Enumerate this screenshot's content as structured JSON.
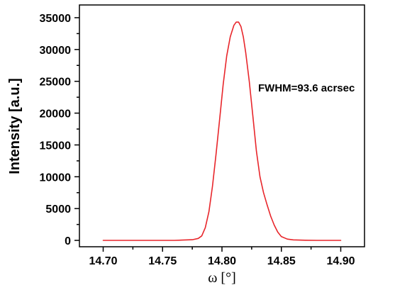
{
  "chart_data": {
    "type": "line",
    "title": "",
    "xlabel": "ω [°]",
    "ylabel": "Intensity [a.u.]",
    "xlim": [
      14.68,
      14.92
    ],
    "ylim": [
      -1000,
      37000
    ],
    "xticks": [
      "14.70",
      "14.75",
      "14.80",
      "14.85",
      "14.90"
    ],
    "yticks": [
      "0",
      "5000",
      "10000",
      "15000",
      "20000",
      "25000",
      "30000",
      "35000"
    ],
    "grid": false,
    "legend": "none",
    "annotation": "FWHM=93.6 acrsec",
    "line_color": "#e8262b",
    "series": [
      {
        "x": [
          14.7,
          14.72,
          14.74,
          14.76,
          14.775,
          14.78,
          14.783,
          14.786,
          14.789,
          14.792,
          14.795,
          14.798,
          14.801,
          14.804,
          14.807,
          14.81,
          14.812,
          14.814,
          14.816,
          14.818,
          14.82,
          14.823,
          14.826,
          14.829,
          14.832,
          14.835,
          14.838,
          14.841,
          14.844,
          14.847,
          14.85,
          14.855,
          14.86,
          14.87,
          14.88,
          14.89,
          14.9
        ],
        "y": [
          0,
          0,
          0,
          0,
          100,
          300,
          700,
          2000,
          4500,
          8500,
          13500,
          19000,
          24500,
          29000,
          32000,
          33800,
          34300,
          34300,
          33600,
          32000,
          29500,
          25000,
          19500,
          14000,
          10000,
          7500,
          5600,
          3800,
          2400,
          1300,
          600,
          200,
          80,
          20,
          0,
          0,
          0
        ]
      }
    ]
  }
}
